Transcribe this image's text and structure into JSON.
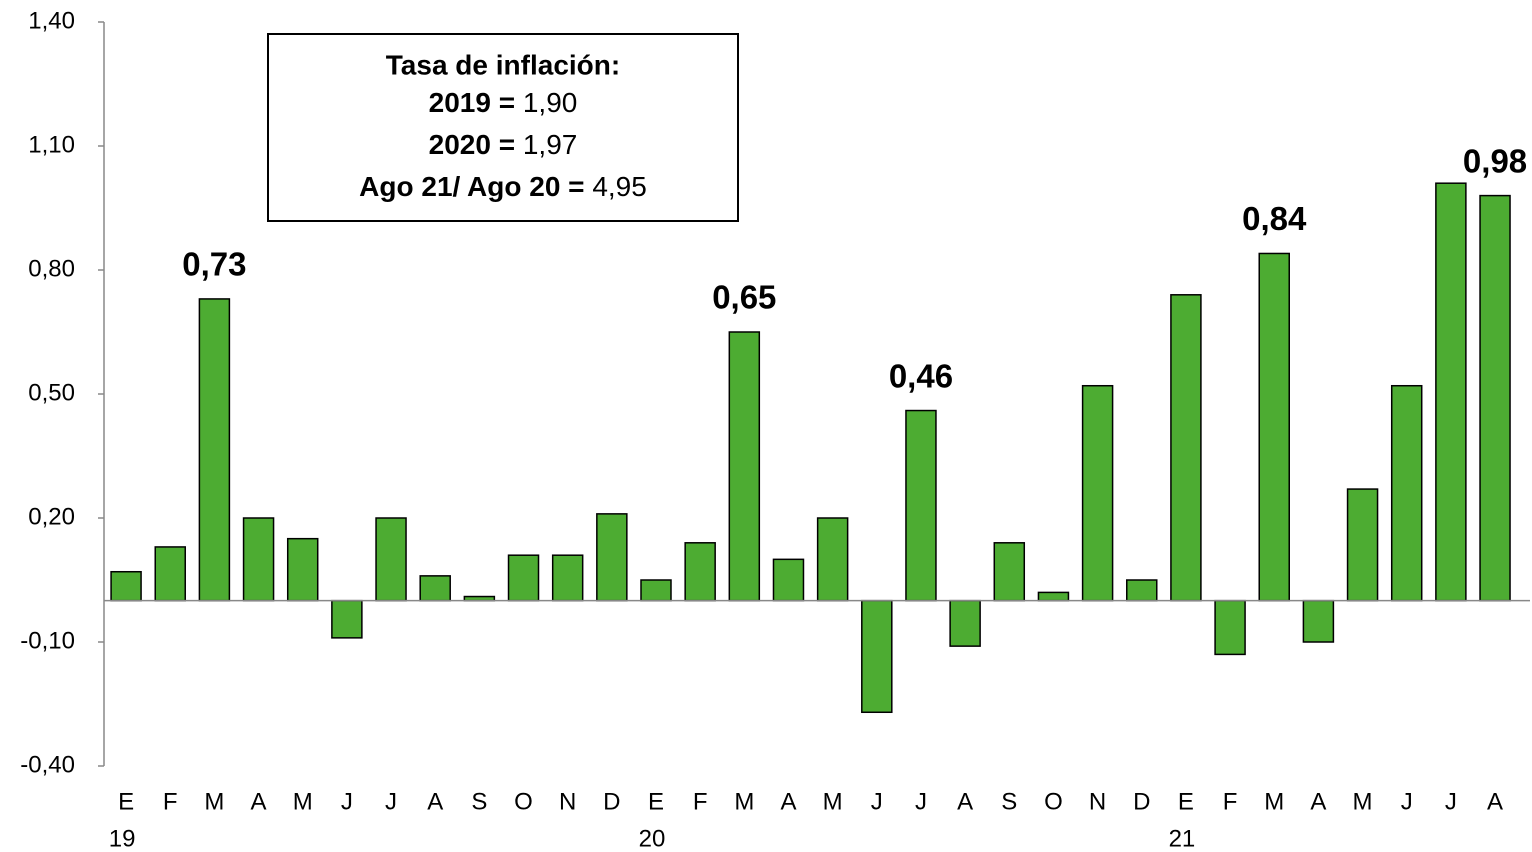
{
  "chart_data": {
    "type": "bar",
    "categories": [
      "E",
      "F",
      "M",
      "A",
      "M",
      "J",
      "J",
      "A",
      "S",
      "O",
      "N",
      "D",
      "E",
      "F",
      "M",
      "A",
      "M",
      "J",
      "J",
      "A",
      "S",
      "O",
      "N",
      "D",
      "E",
      "F",
      "M",
      "A",
      "M",
      "J",
      "J",
      "A"
    ],
    "year_labels": [
      "19",
      null,
      null,
      null,
      null,
      null,
      null,
      null,
      null,
      null,
      null,
      null,
      "20",
      null,
      null,
      null,
      null,
      null,
      null,
      null,
      null,
      null,
      null,
      null,
      "21",
      null,
      null,
      null,
      null,
      null,
      null,
      null
    ],
    "values": [
      0.07,
      0.13,
      0.73,
      0.2,
      0.15,
      -0.09,
      0.2,
      0.06,
      0.01,
      0.11,
      0.11,
      0.21,
      0.05,
      0.14,
      0.65,
      0.1,
      0.2,
      -0.27,
      0.46,
      -0.11,
      0.14,
      0.02,
      0.52,
      0.05,
      0.74,
      -0.13,
      0.84,
      -0.1,
      0.27,
      0.52,
      1.01,
      0.98
    ],
    "value_labels": [
      null,
      null,
      "0,73",
      null,
      null,
      null,
      null,
      null,
      null,
      null,
      null,
      null,
      null,
      null,
      "0,65",
      null,
      null,
      null,
      "0,46",
      null,
      null,
      null,
      null,
      null,
      null,
      null,
      "0,84",
      null,
      null,
      null,
      null,
      "0,98"
    ],
    "color": "#4dac32",
    "ylim": [
      -0.4,
      1.4
    ],
    "yticks": [
      {
        "value": -0.4,
        "label": "-0,40"
      },
      {
        "value": -0.1,
        "label": "-0,10"
      },
      {
        "value": 0.2,
        "label": "0,20"
      },
      {
        "value": 0.5,
        "label": "0,50"
      },
      {
        "value": 0.8,
        "label": "0,80"
      },
      {
        "value": 1.1,
        "label": "1,10"
      },
      {
        "value": 1.4,
        "label": "1,40"
      }
    ],
    "grid": false,
    "annotation": {
      "title": "Tasa de inflación:",
      "items": [
        {
          "label": "2019 =",
          "value": "1,90"
        },
        {
          "label": "2020 =",
          "value": "1,97"
        },
        {
          "label": "Ago 21/ Ago 20 =",
          "value": "4,95"
        }
      ]
    }
  }
}
